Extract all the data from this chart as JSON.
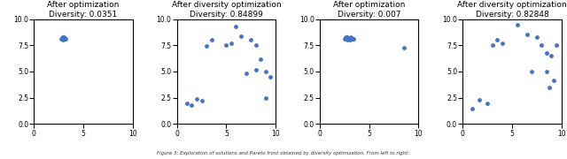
{
  "panels": [
    {
      "title": "After optimization\nDiversity: 0.0351",
      "points_x": [
        2.8,
        3.0,
        3.1,
        2.9,
        3.2,
        2.85,
        3.05,
        2.95,
        3.15,
        2.75,
        3.1,
        2.9
      ],
      "points_y": [
        8.1,
        8.2,
        8.15,
        8.25,
        8.1,
        8.2,
        8.3,
        8.05,
        8.2,
        8.15,
        8.1,
        8.3
      ]
    },
    {
      "title": "After diversity optimization\nDiversity: 0.84899",
      "points_x": [
        1.0,
        1.5,
        2.0,
        2.5,
        3.0,
        3.5,
        5.0,
        5.5,
        6.0,
        6.5,
        7.5,
        8.0,
        8.5,
        9.0,
        7.0,
        8.0,
        9.5,
        9.0
      ],
      "points_y": [
        2.0,
        1.8,
        2.4,
        2.2,
        7.4,
        8.0,
        7.5,
        7.7,
        9.3,
        8.4,
        8.0,
        7.5,
        6.2,
        5.0,
        4.8,
        5.2,
        4.5,
        2.5
      ]
    },
    {
      "title": "After optimization\nDiversity: 0.007",
      "points_x": [
        2.5,
        2.7,
        2.9,
        3.1,
        3.3,
        2.6,
        2.8,
        3.0,
        3.2,
        3.4,
        2.75,
        3.05,
        8.5
      ],
      "points_y": [
        8.1,
        8.2,
        8.15,
        8.25,
        8.1,
        8.3,
        8.05,
        8.2,
        8.15,
        8.1,
        8.3,
        8.0,
        7.3
      ]
    },
    {
      "title": "After diversity optimization\nDiversity: 0.82848",
      "points_x": [
        1.0,
        1.7,
        2.5,
        3.0,
        3.5,
        4.0,
        5.5,
        6.5,
        7.5,
        8.0,
        8.5,
        9.0,
        7.0,
        8.5,
        9.5,
        9.2,
        8.8
      ],
      "points_y": [
        1.5,
        2.3,
        2.0,
        7.5,
        8.0,
        7.7,
        9.5,
        8.5,
        8.3,
        7.5,
        6.8,
        6.5,
        5.0,
        5.0,
        7.5,
        4.2,
        3.5
      ]
    }
  ],
  "xlim": [
    0,
    10
  ],
  "ylim": [
    0,
    10
  ],
  "xticks": [
    0,
    5,
    10
  ],
  "yticks": [
    0.0,
    2.5,
    5.0,
    7.5,
    10.0
  ],
  "point_color": "#4472C4",
  "point_size": 6,
  "title_fontsize": 6.5,
  "tick_fontsize": 5.5,
  "background_color": "#ffffff",
  "caption": "Figure 3: Exploration of solutions and Pareto front obtained by diversity optimization. From left to right:"
}
